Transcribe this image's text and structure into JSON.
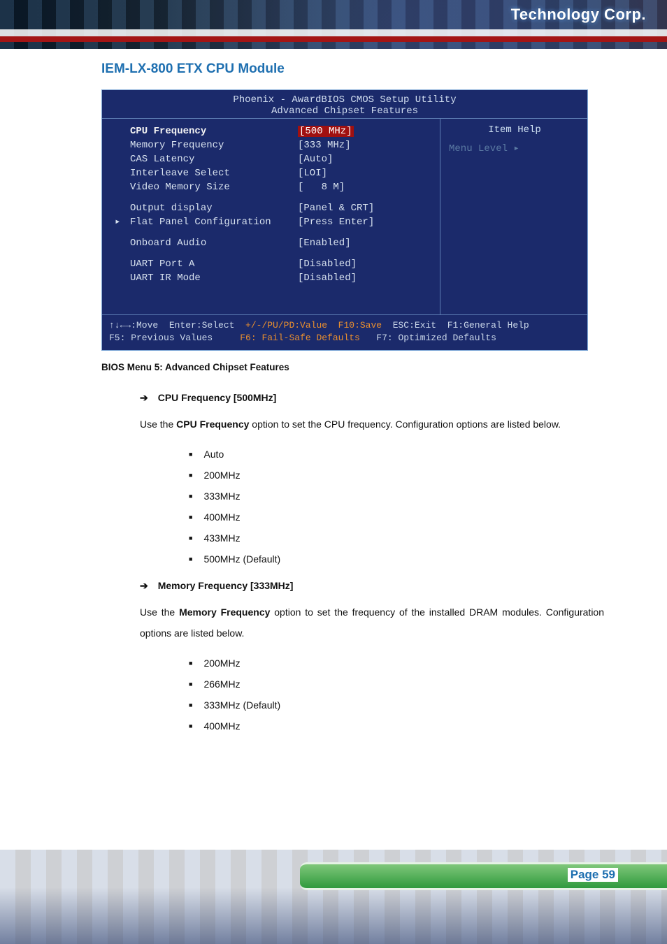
{
  "header": {
    "logo_text": "Technology Corp.",
    "page_title": "IEM-LX-800 ETX CPU Module"
  },
  "bios": {
    "title_line1": "Phoenix - AwardBIOS CMOS Setup Utility",
    "title_line2": "Advanced Chipset Features",
    "rows": [
      {
        "label": "CPU Frequency",
        "value": "[500 MHz]",
        "highlighted": true
      },
      {
        "label": "Memory Frequency",
        "value": "[333 MHz]"
      },
      {
        "label": "CAS Latency",
        "value": "[Auto]"
      },
      {
        "label": "Interleave Select",
        "value": "[LOI]"
      },
      {
        "label": "Video Memory Size",
        "value": "[   8 M]"
      },
      {
        "spacer": true
      },
      {
        "label": "Output display",
        "value": "[Panel & CRT]"
      },
      {
        "label": "Flat Panel Configuration",
        "value": "[Press Enter]",
        "pointer": "▸"
      },
      {
        "spacer": true
      },
      {
        "label": "Onboard Audio",
        "value": "[Enabled]"
      },
      {
        "spacer": true
      },
      {
        "label": "UART Port A",
        "value": "[Disabled]"
      },
      {
        "label": "UART IR Mode",
        "value": "[Disabled]"
      }
    ],
    "help_title": "Item Help",
    "menu_level": "Menu Level   ▸",
    "footer_l1_a": "↑↓←→:Move  Enter:Select  ",
    "footer_l1_b": "+/-/PU/PD:Value  F10:Save  ",
    "footer_l1_c": "ESC:Exit  F1:General Help",
    "footer_l2_a": "F5: Previous Values     ",
    "footer_l2_b": "F6: Fail-Safe Defaults   ",
    "footer_l2_c": "F7: Optimized Defaults",
    "colors": {
      "bg": "#1b2a6b",
      "border": "#7fa8d6",
      "text": "#d8e2ef",
      "muted": "#5b7aa3",
      "highlight_bg": "#a01010",
      "orange": "#e98f2f"
    }
  },
  "caption": "BIOS Menu 5: Advanced Chipset Features",
  "sections": [
    {
      "heading": "CPU Frequency [500MHz]",
      "para_pre": "Use the ",
      "para_bold": "CPU Frequency",
      "para_post": " option to set the CPU frequency. Configuration options are listed below.",
      "bullets": [
        "Auto",
        "200MHz",
        "333MHz",
        "400MHz",
        "433MHz",
        "500MHz (Default)"
      ]
    },
    {
      "heading": "Memory Frequency [333MHz]",
      "para_pre": "Use the ",
      "para_bold": "Memory Frequency",
      "para_post": " option to set the frequency of the installed DRAM modules. Configuration options are listed below.",
      "bullets": [
        "200MHz",
        "266MHz",
        "333MHz (Default)",
        "400MHz"
      ]
    }
  ],
  "footer": {
    "page_label": "Page 59"
  },
  "doc_colors": {
    "title_blue": "#1e6fb0",
    "text": "#111111"
  }
}
